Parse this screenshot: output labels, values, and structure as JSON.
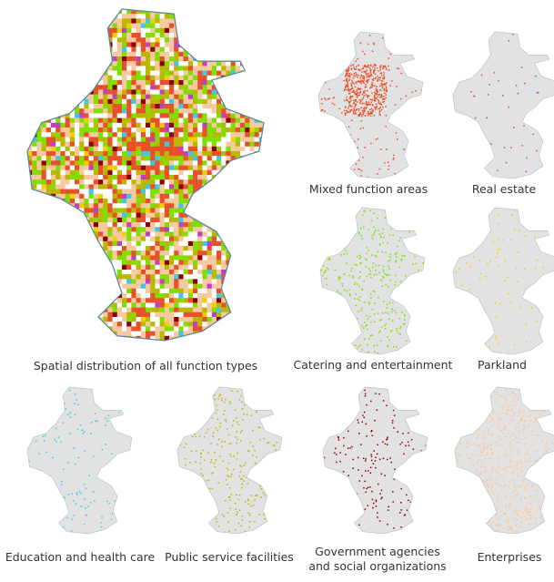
{
  "figure": {
    "overview": {
      "label": "Spatial distribution of all  function types",
      "colors": [
        "#e8502a",
        "#c040c0",
        "#7fe000",
        "#f0d000",
        "#40c8e0",
        "#b8b800",
        "#8b0000",
        "#f8c8a0"
      ]
    },
    "panels": [
      {
        "label": "Mixed function areas",
        "color": "#e8502a"
      },
      {
        "label": "Real estate",
        "color": "#c040c0"
      },
      {
        "label": "Catering and entertainment",
        "color": "#7fe000"
      },
      {
        "label": "Parkland",
        "color": "#f0d000"
      },
      {
        "label": "Education and health care",
        "color": "#40c8e0"
      },
      {
        "label": "Public service facilities",
        "color": "#b8b800"
      },
      {
        "label": "Government agencies and social organizations",
        "color": "#8b0000"
      },
      {
        "label": "Enterprises",
        "color": "#f8c8a0"
      }
    ]
  }
}
